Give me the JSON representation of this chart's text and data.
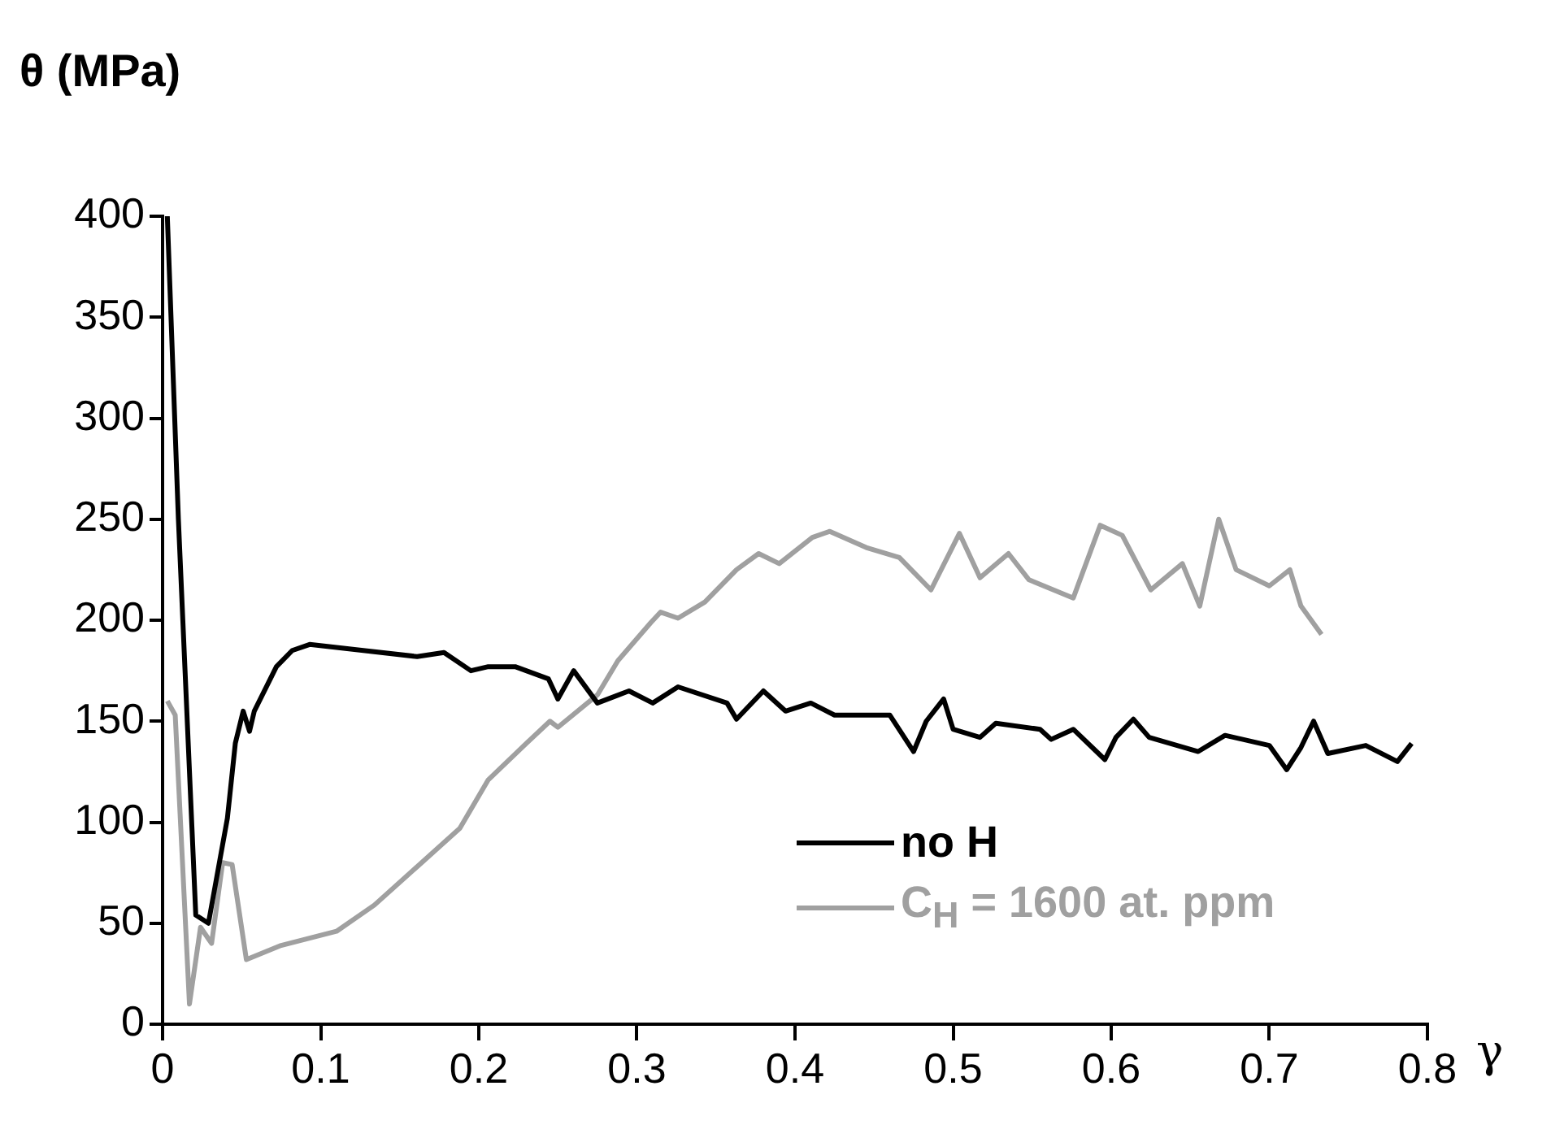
{
  "chart_data": {
    "type": "line",
    "xlabel": "γ",
    "ylabel": "θ (MPa)",
    "xlim": [
      0,
      0.8
    ],
    "xticks": [
      0,
      0.1,
      0.2,
      0.3,
      0.4,
      0.5,
      0.6,
      0.7,
      0.8
    ],
    "ylim": [
      0,
      400
    ],
    "yticks": [
      0,
      50,
      100,
      150,
      200,
      250,
      300,
      350,
      400
    ],
    "grid": false,
    "legend": "bottom right",
    "marker": "none",
    "line_style": "solid",
    "series": [
      {
        "name": "no H",
        "color": "#000000",
        "x": [
          0.003,
          0.01,
          0.021,
          0.029,
          0.041,
          0.046,
          0.051,
          0.055,
          0.058,
          0.072,
          0.082,
          0.093,
          0.127,
          0.161,
          0.178,
          0.195,
          0.206,
          0.223,
          0.244,
          0.25,
          0.26,
          0.275,
          0.295,
          0.31,
          0.326,
          0.357,
          0.363,
          0.38,
          0.394,
          0.41,
          0.425,
          0.46,
          0.475,
          0.483,
          0.494,
          0.5,
          0.517,
          0.527,
          0.555,
          0.562,
          0.576,
          0.596,
          0.603,
          0.614,
          0.624,
          0.655,
          0.672,
          0.7,
          0.711,
          0.72,
          0.728,
          0.737,
          0.761,
          0.781,
          0.79
        ],
        "values": [
          400,
          250,
          54,
          50,
          102,
          139,
          155,
          145,
          155,
          177,
          185,
          188,
          185,
          182,
          184,
          175,
          177,
          177,
          171,
          161,
          175,
          159,
          165,
          159,
          167,
          159,
          151,
          165,
          155,
          159,
          153,
          153,
          135,
          150,
          161,
          146,
          142,
          149,
          146,
          141,
          146,
          131,
          142,
          151,
          142,
          135,
          143,
          138,
          126,
          137,
          150,
          134,
          138,
          130,
          139
        ]
      },
      {
        "name": "C$_{H}$ = 1600 at. ppm",
        "color": "#a0a0a0",
        "x": [
          0.003,
          0.008,
          0.017,
          0.024,
          0.031,
          0.038,
          0.044,
          0.053,
          0.075,
          0.11,
          0.134,
          0.161,
          0.188,
          0.206,
          0.23,
          0.245,
          0.25,
          0.275,
          0.288,
          0.309,
          0.315,
          0.326,
          0.343,
          0.363,
          0.377,
          0.39,
          0.411,
          0.422,
          0.445,
          0.466,
          0.486,
          0.504,
          0.517,
          0.535,
          0.548,
          0.576,
          0.593,
          0.607,
          0.625,
          0.645,
          0.656,
          0.668,
          0.679,
          0.7,
          0.713,
          0.72,
          0.733
        ],
        "values": [
          160,
          153,
          10,
          48,
          40,
          80,
          79,
          32,
          39,
          46,
          59,
          78,
          97,
          121,
          139,
          150,
          147,
          163,
          180,
          199,
          204,
          201,
          209,
          225,
          233,
          228,
          241,
          244,
          236,
          231,
          215,
          243,
          221,
          233,
          220,
          211,
          247,
          242,
          215,
          228,
          207,
          250,
          225,
          217,
          225,
          207,
          193
        ]
      }
    ]
  }
}
